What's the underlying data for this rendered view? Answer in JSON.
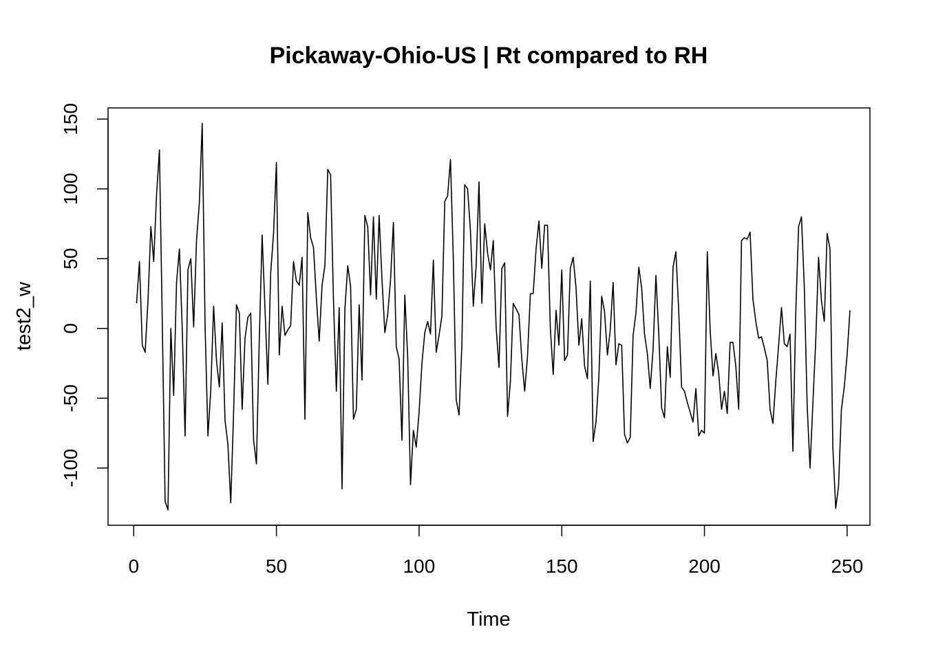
{
  "chart_data": {
    "type": "line",
    "title": "Pickaway-Ohio-US | Rt compared to RH",
    "xlabel": "Time",
    "ylabel": "test2_w",
    "xlim": [
      -9,
      258
    ],
    "ylim": [
      -141,
      158
    ],
    "x_ticks": [
      0,
      50,
      100,
      150,
      200,
      250
    ],
    "y_ticks": [
      -100,
      -50,
      0,
      50,
      100,
      150
    ],
    "grid": false,
    "legend": "none",
    "line_color": "#000000",
    "series": [
      {
        "x_start": 1,
        "values": [
          18,
          48,
          -12,
          -17,
          20,
          73,
          48,
          96,
          128,
          5,
          -124,
          -130,
          0,
          -48,
          33,
          57,
          0,
          -77,
          42,
          50,
          1,
          63,
          90,
          147,
          2,
          -77,
          -44,
          16,
          -23,
          -42,
          4,
          -66,
          -83,
          -125,
          -60,
          17,
          11,
          -58,
          -7,
          8,
          11,
          -80,
          -97,
          -8,
          67,
          14,
          -40,
          40,
          68,
          119,
          -19,
          16,
          -5,
          -1,
          2,
          48,
          34,
          31,
          51,
          -65,
          83,
          65,
          58,
          22,
          -9,
          31,
          45,
          114,
          110,
          20,
          -45,
          15,
          -115,
          14,
          45,
          30,
          -65,
          -58,
          17,
          -37,
          81,
          73,
          24,
          80,
          21,
          81,
          35,
          -3,
          10,
          35,
          76,
          -13,
          -22,
          -80,
          24,
          -20,
          -112,
          -73,
          -85,
          -60,
          -25,
          -3,
          5,
          -4,
          49,
          -17,
          -5,
          9,
          91,
          95,
          121,
          50,
          -51,
          -62,
          -12,
          103,
          100,
          70,
          16,
          45,
          105,
          18,
          75,
          54,
          42,
          63,
          1,
          -28,
          43,
          47,
          -63,
          -38,
          18,
          14,
          10,
          -22,
          -45,
          -20,
          25,
          25,
          57,
          77,
          43,
          74,
          74,
          0,
          -33,
          13,
          -12,
          42,
          -23,
          -19,
          43,
          51,
          29,
          -12,
          7,
          -27,
          -36,
          34,
          -81,
          -67,
          -35,
          23,
          12,
          -19,
          -1,
          33,
          -26,
          -11,
          -12,
          -76,
          -82,
          -78,
          -5,
          11,
          44,
          29,
          -4,
          -18,
          -43,
          -15,
          38,
          -4,
          -57,
          -64,
          -13,
          -35,
          44,
          55,
          12,
          -42,
          -45,
          -53,
          -60,
          -67,
          -43,
          -77,
          -73,
          -75,
          55,
          -1,
          -34,
          -18,
          -32,
          -58,
          -45,
          -61,
          -10,
          -10,
          -27,
          -58,
          63,
          65,
          64,
          69,
          21,
          5,
          -7,
          -6,
          -14,
          -23,
          -58,
          -68,
          -38,
          -12,
          15,
          -11,
          -13,
          -4,
          -88,
          11,
          73,
          80,
          30,
          -55,
          -100,
          -54,
          -9,
          51,
          20,
          5,
          68,
          57,
          -85,
          -129,
          -113,
          -58,
          -42,
          -19,
          13
        ]
      }
    ]
  }
}
